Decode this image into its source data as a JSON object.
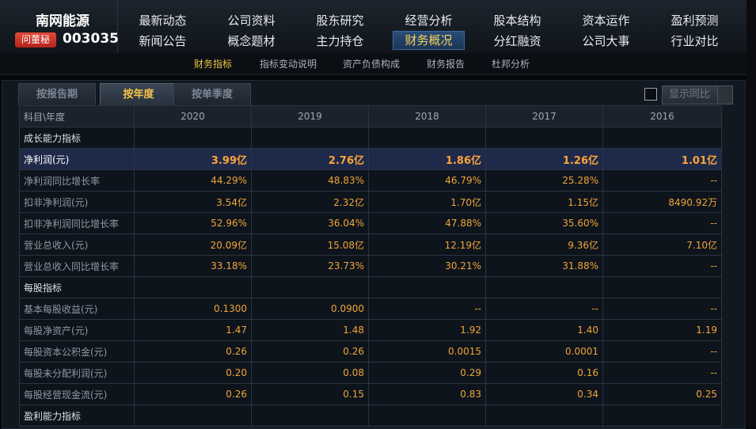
{
  "stock": {
    "name": "南网能源",
    "ask_label": "问董秘",
    "code": "003035"
  },
  "nav": {
    "row1": [
      "最新动态",
      "公司资料",
      "股东研究",
      "经营分析",
      "股本结构",
      "资本运作",
      "盈利预测"
    ],
    "row2": [
      "新闻公告",
      "概念题材",
      "主力持仓",
      "财务概况",
      "分红融资",
      "公司大事",
      "行业对比"
    ],
    "active": "财务概况"
  },
  "subnav": {
    "items": [
      "财务指标",
      "指标变动说明",
      "资产负债构成",
      "财务报告",
      "杜邦分析"
    ],
    "active": "财务指标"
  },
  "tabs": {
    "items": [
      "按报告期",
      "按年度",
      "按单季度"
    ],
    "active": "按年度"
  },
  "yoy_label": "显示同比",
  "colors": {
    "value": "#f0a43a",
    "active": "#f3c34a",
    "highlight_row": "#1f2a4a"
  },
  "table": {
    "corner": "科目\\年度",
    "years": [
      "2020",
      "2019",
      "2018",
      "2017",
      "2016"
    ],
    "rows": [
      {
        "type": "section",
        "label": "成长能力指标"
      },
      {
        "type": "highlight",
        "label": "净利润(元)",
        "values": [
          "3.99亿",
          "2.76亿",
          "1.86亿",
          "1.26亿",
          "1.01亿"
        ]
      },
      {
        "type": "row",
        "label": "净利润同比增长率",
        "values": [
          "44.29%",
          "48.83%",
          "46.79%",
          "25.28%",
          "--"
        ]
      },
      {
        "type": "row",
        "label": "扣非净利润(元)",
        "values": [
          "3.54亿",
          "2.32亿",
          "1.70亿",
          "1.15亿",
          "8490.92万"
        ]
      },
      {
        "type": "row",
        "label": "扣非净利润同比增长率",
        "values": [
          "52.96%",
          "36.04%",
          "47.88%",
          "35.60%",
          "--"
        ]
      },
      {
        "type": "row",
        "label": "营业总收入(元)",
        "values": [
          "20.09亿",
          "15.08亿",
          "12.19亿",
          "9.36亿",
          "7.10亿"
        ]
      },
      {
        "type": "row",
        "label": "营业总收入同比增长率",
        "values": [
          "33.18%",
          "23.73%",
          "30.21%",
          "31.88%",
          "--"
        ]
      },
      {
        "type": "section",
        "label": "每股指标"
      },
      {
        "type": "row",
        "label": "基本每股收益(元)",
        "values": [
          "0.1300",
          "0.0900",
          "--",
          "--",
          "--"
        ]
      },
      {
        "type": "row",
        "label": "每股净资产(元)",
        "values": [
          "1.47",
          "1.48",
          "1.92",
          "1.40",
          "1.19"
        ]
      },
      {
        "type": "row",
        "label": "每股资本公积金(元)",
        "values": [
          "0.26",
          "0.26",
          "0.0015",
          "0.0001",
          "--"
        ]
      },
      {
        "type": "row",
        "label": "每股未分配利润(元)",
        "values": [
          "0.20",
          "0.08",
          "0.29",
          "0.16",
          "--"
        ]
      },
      {
        "type": "row",
        "label": "每股经营现金流(元)",
        "values": [
          "0.26",
          "0.15",
          "0.83",
          "0.34",
          "0.25"
        ]
      },
      {
        "type": "section",
        "label": "盈利能力指标"
      }
    ]
  }
}
